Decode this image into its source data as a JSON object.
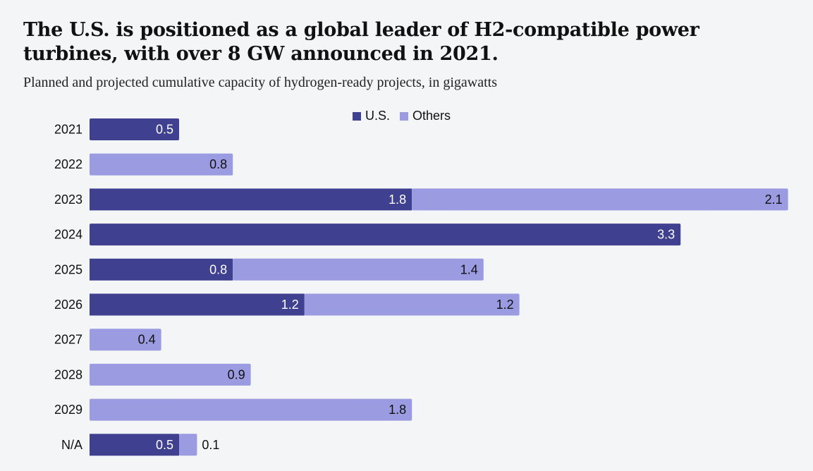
{
  "chart_data": {
    "type": "bar",
    "orientation": "horizontal",
    "stacked": true,
    "title": "The U.S. is positioned as a global leader of H2-compatible power turbines, with over 8 GW announced in 2021.",
    "subtitle": "Planned and projected cumulative capacity of hydrogen-ready projects, in gigawatts",
    "categories": [
      "2021",
      "2022",
      "2023",
      "2024",
      "2025",
      "2026",
      "2027",
      "2028",
      "2029",
      "N/A"
    ],
    "series": [
      {
        "name": "U.S.",
        "color": "#3f4190",
        "values": [
          0.5,
          0,
          1.8,
          3.3,
          0.8,
          1.2,
          0,
          0,
          0,
          0.5
        ]
      },
      {
        "name": "Others",
        "color": "#9a9be0",
        "values": [
          0,
          0.8,
          2.1,
          0,
          1.4,
          1.2,
          0.4,
          0.9,
          1.8,
          0.1
        ]
      }
    ],
    "legend": {
      "position": "top-center",
      "entries": [
        "U.S.",
        "Others"
      ]
    },
    "xlim": [
      0,
      4
    ],
    "grid": false
  }
}
